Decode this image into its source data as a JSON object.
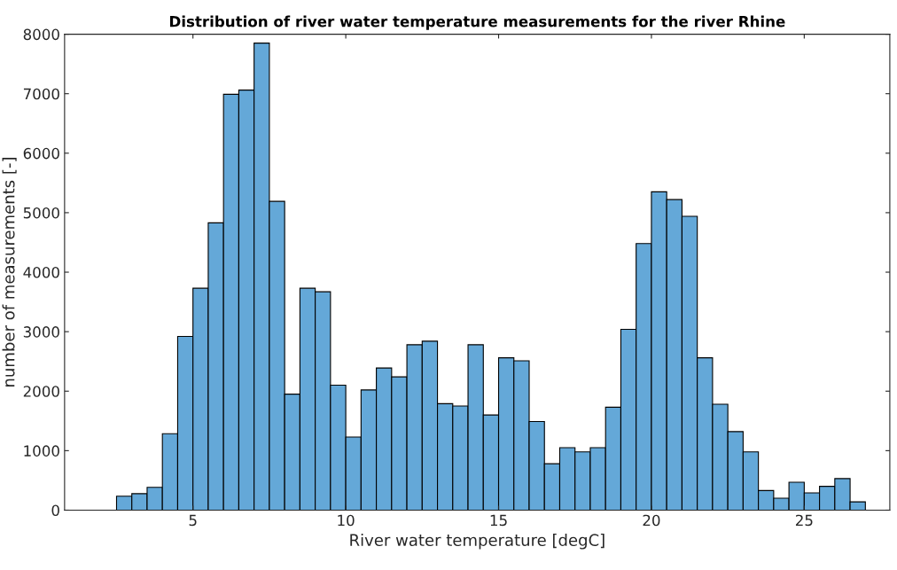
{
  "chart_data": {
    "type": "histogram",
    "title": "Distribution of river water temperature measurements for the river Rhine",
    "xlabel": "River water temperature [degC]",
    "ylabel": "number of measurements [-]",
    "bins": [
      2.5,
      3,
      3.5,
      4,
      4.5,
      5,
      5.5,
      6,
      6.5,
      7,
      7.5,
      8,
      8.5,
      9,
      9.5,
      10,
      10.5,
      11,
      11.5,
      12,
      12.5,
      13,
      13.5,
      14,
      14.5,
      15,
      15.5,
      16,
      16.5,
      17,
      17.5,
      18,
      18.5,
      19,
      19.5,
      20,
      20.5,
      21,
      21.5,
      22,
      22.5,
      23,
      23.5,
      24,
      24.5,
      25,
      25.5,
      26,
      26.5,
      27
    ],
    "values": [
      235,
      277,
      384,
      1285,
      2920,
      3730,
      4830,
      6990,
      7060,
      7850,
      5190,
      1950,
      3730,
      3670,
      2100,
      1230,
      2020,
      2390,
      2240,
      2780,
      2840,
      1790,
      1750,
      2780,
      1600,
      2560,
      2510,
      1490,
      780,
      1050,
      980,
      1050,
      1730,
      3040,
      4480,
      5350,
      5220,
      4940,
      2560,
      1780,
      1320,
      980,
      330,
      200,
      470,
      290,
      400,
      530,
      140
    ],
    "color": "#64a8d8",
    "xlim": [
      0.8,
      27.8
    ],
    "xticks": [
      5,
      10,
      15,
      20,
      25
    ],
    "ylim": [
      0,
      8000
    ],
    "yticks": [
      0,
      1000,
      2000,
      3000,
      4000,
      5000,
      6000,
      7000,
      8000
    ],
    "grid": false
  }
}
